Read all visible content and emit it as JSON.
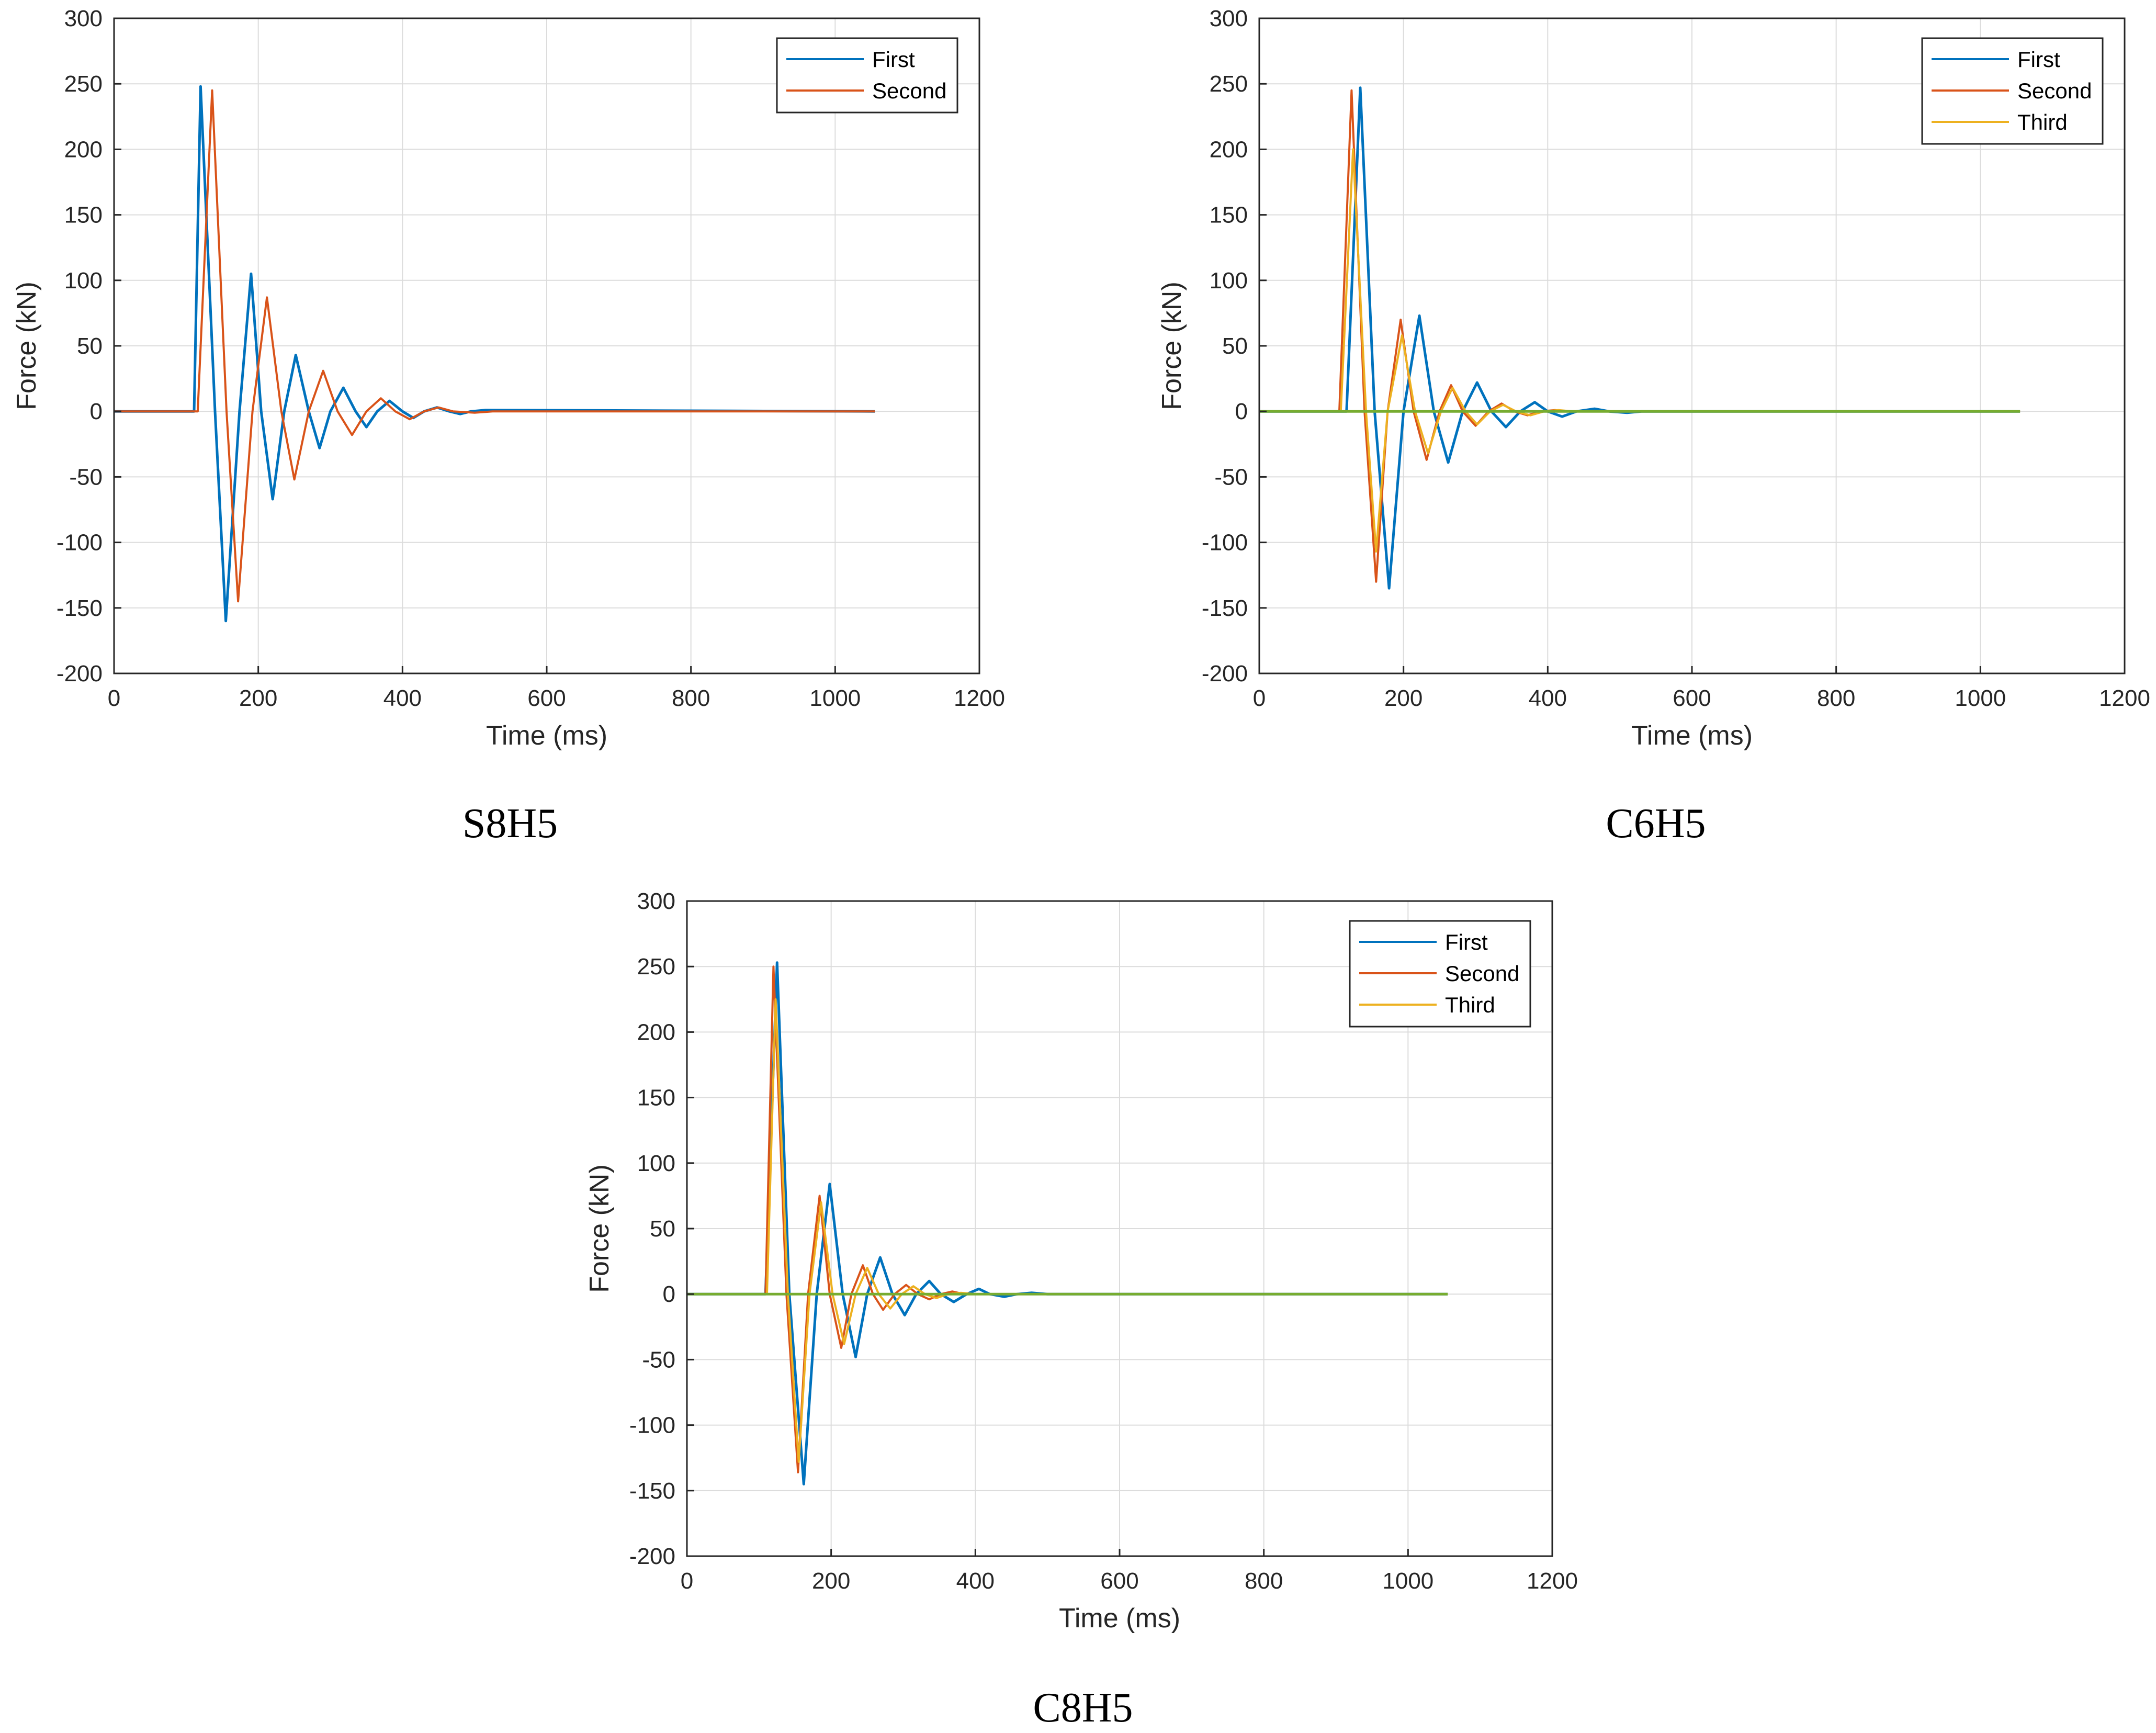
{
  "chart_data": [
    {
      "id": "s8h5",
      "type": "line",
      "caption": "S8H5",
      "xlabel": "Time (ms)",
      "ylabel": "Force (kN)",
      "xlim": [
        0,
        1200
      ],
      "ylim": [
        -200,
        300
      ],
      "xticks": [
        0,
        200,
        400,
        600,
        800,
        1000,
        1200
      ],
      "yticks": [
        -200,
        -150,
        -100,
        -50,
        0,
        50,
        100,
        150,
        200,
        250,
        300
      ],
      "grid": true,
      "legend_position": "top-right",
      "series": [
        {
          "name": "First",
          "color": "#0072BD",
          "points": [
            [
              0,
              0
            ],
            [
              110,
              0
            ],
            [
              111,
              0
            ],
            [
              120,
              248
            ],
            [
              140,
              0
            ],
            [
              155,
              -160
            ],
            [
              174,
              0
            ],
            [
              190,
              105
            ],
            [
              204,
              0
            ],
            [
              220,
              -67
            ],
            [
              236,
              0
            ],
            [
              252,
              43
            ],
            [
              270,
              0
            ],
            [
              285,
              -28
            ],
            [
              300,
              0
            ],
            [
              318,
              18
            ],
            [
              335,
              0
            ],
            [
              350,
              -12
            ],
            [
              365,
              0
            ],
            [
              382,
              8
            ],
            [
              400,
              0
            ],
            [
              415,
              -5
            ],
            [
              430,
              0
            ],
            [
              448,
              3
            ],
            [
              465,
              0
            ],
            [
              480,
              -2
            ],
            [
              495,
              0
            ],
            [
              515,
              1
            ],
            [
              1055,
              0
            ]
          ]
        },
        {
          "name": "Second",
          "color": "#D95319",
          "points": [
            [
              0,
              0
            ],
            [
              115,
              0
            ],
            [
              116,
              0
            ],
            [
              136,
              245
            ],
            [
              156,
              0
            ],
            [
              172,
              -145
            ],
            [
              192,
              0
            ],
            [
              212,
              87
            ],
            [
              232,
              0
            ],
            [
              250,
              -52
            ],
            [
              270,
              0
            ],
            [
              290,
              31
            ],
            [
              310,
              0
            ],
            [
              330,
              -18
            ],
            [
              350,
              0
            ],
            [
              370,
              10
            ],
            [
              390,
              0
            ],
            [
              410,
              -6
            ],
            [
              430,
              0
            ],
            [
              450,
              3
            ],
            [
              470,
              0
            ],
            [
              500,
              -1
            ],
            [
              525,
              0
            ],
            [
              1055,
              0
            ]
          ]
        }
      ]
    },
    {
      "id": "c6h5",
      "type": "line",
      "caption": "C6H5",
      "xlabel": "Time (ms)",
      "ylabel": "Force (kN)",
      "xlim": [
        0,
        1200
      ],
      "ylim": [
        -200,
        300
      ],
      "xticks": [
        0,
        200,
        400,
        600,
        800,
        1000,
        1200
      ],
      "yticks": [
        -200,
        -150,
        -100,
        -50,
        0,
        50,
        100,
        150,
        200,
        250,
        300
      ],
      "grid": true,
      "legend_position": "top-right",
      "series": [
        {
          "name": "First",
          "color": "#0072BD",
          "points": [
            [
              0,
              0
            ],
            [
              120,
              0
            ],
            [
              121,
              0
            ],
            [
              140,
              247
            ],
            [
              160,
              0
            ],
            [
              180,
              -135
            ],
            [
              200,
              0
            ],
            [
              222,
              73
            ],
            [
              242,
              0
            ],
            [
              262,
              -39
            ],
            [
              282,
              0
            ],
            [
              302,
              22
            ],
            [
              322,
              0
            ],
            [
              342,
              -12
            ],
            [
              362,
              0
            ],
            [
              382,
              7
            ],
            [
              400,
              0
            ],
            [
              420,
              -4
            ],
            [
              440,
              0
            ],
            [
              465,
              2
            ],
            [
              485,
              0
            ],
            [
              510,
              -1
            ],
            [
              530,
              0
            ],
            [
              1055,
              0
            ]
          ]
        },
        {
          "name": "Second",
          "color": "#D95319",
          "points": [
            [
              0,
              0
            ],
            [
              110,
              0
            ],
            [
              111,
              0
            ],
            [
              128,
              245
            ],
            [
              146,
              0
            ],
            [
              162,
              -130
            ],
            [
              178,
              0
            ],
            [
              196,
              70
            ],
            [
              214,
              0
            ],
            [
              232,
              -37
            ],
            [
              250,
              0
            ],
            [
              266,
              20
            ],
            [
              282,
              0
            ],
            [
              300,
              -11
            ],
            [
              318,
              0
            ],
            [
              336,
              6
            ],
            [
              354,
              0
            ],
            [
              372,
              -3
            ],
            [
              390,
              0
            ],
            [
              410,
              1
            ],
            [
              430,
              0
            ],
            [
              1055,
              0
            ]
          ]
        },
        {
          "name": "Third",
          "color": "#EDB120",
          "points": [
            [
              0,
              0
            ],
            [
              112,
              0
            ],
            [
              113,
              0
            ],
            [
              130,
              200
            ],
            [
              148,
              0
            ],
            [
              162,
              -107
            ],
            [
              178,
              0
            ],
            [
              198,
              58
            ],
            [
              216,
              0
            ],
            [
              234,
              -32
            ],
            [
              252,
              0
            ],
            [
              268,
              18
            ],
            [
              286,
              0
            ],
            [
              302,
              -10
            ],
            [
              320,
              0
            ],
            [
              338,
              5
            ],
            [
              356,
              0
            ],
            [
              376,
              -3
            ],
            [
              395,
              0
            ],
            [
              415,
              1
            ],
            [
              435,
              0
            ],
            [
              1055,
              0
            ]
          ]
        },
        {
          "name": "",
          "color": "#77AC30",
          "points": [
            [
              0,
              0
            ],
            [
              1055,
              0
            ]
          ]
        }
      ]
    },
    {
      "id": "c8h5",
      "type": "line",
      "caption": "C8H5",
      "xlabel": "Time (ms)",
      "ylabel": "Force (kN)",
      "xlim": [
        0,
        1200
      ],
      "ylim": [
        -200,
        300
      ],
      "xticks": [
        0,
        200,
        400,
        600,
        800,
        1000,
        1200
      ],
      "yticks": [
        -200,
        -150,
        -100,
        -50,
        0,
        50,
        100,
        150,
        200,
        250,
        300
      ],
      "grid": true,
      "legend_position": "top-right",
      "series": [
        {
          "name": "First",
          "color": "#0072BD",
          "points": [
            [
              0,
              0
            ],
            [
              108,
              0
            ],
            [
              109,
              0
            ],
            [
              125,
              253
            ],
            [
              142,
              0
            ],
            [
              162,
              -145
            ],
            [
              180,
              0
            ],
            [
              198,
              84
            ],
            [
              216,
              0
            ],
            [
              234,
              -48
            ],
            [
              250,
              0
            ],
            [
              268,
              28
            ],
            [
              285,
              0
            ],
            [
              302,
              -16
            ],
            [
              318,
              0
            ],
            [
              336,
              10
            ],
            [
              352,
              0
            ],
            [
              370,
              -6
            ],
            [
              388,
              0
            ],
            [
              405,
              4
            ],
            [
              420,
              0
            ],
            [
              440,
              -2
            ],
            [
              458,
              0
            ],
            [
              478,
              1
            ],
            [
              500,
              0
            ],
            [
              1055,
              0
            ]
          ]
        },
        {
          "name": "Second",
          "color": "#D95319",
          "points": [
            [
              0,
              0
            ],
            [
              108,
              0
            ],
            [
              109,
              0
            ],
            [
              120,
              250
            ],
            [
              138,
              0
            ],
            [
              154,
              -136
            ],
            [
              168,
              0
            ],
            [
              184,
              75
            ],
            [
              198,
              0
            ],
            [
              214,
              -41
            ],
            [
              228,
              0
            ],
            [
              244,
              22
            ],
            [
              258,
              0
            ],
            [
              272,
              -12
            ],
            [
              288,
              0
            ],
            [
              304,
              7
            ],
            [
              320,
              0
            ],
            [
              336,
              -4
            ],
            [
              352,
              0
            ],
            [
              368,
              2
            ],
            [
              384,
              0
            ],
            [
              1055,
              0
            ]
          ]
        },
        {
          "name": "Third",
          "color": "#EDB120",
          "points": [
            [
              0,
              0
            ],
            [
              110,
              0
            ],
            [
              111,
              0
            ],
            [
              123,
              225
            ],
            [
              140,
              0
            ],
            [
              155,
              -128
            ],
            [
              170,
              0
            ],
            [
              186,
              70
            ],
            [
              202,
              0
            ],
            [
              218,
              -38
            ],
            [
              234,
              0
            ],
            [
              250,
              20
            ],
            [
              266,
              0
            ],
            [
              282,
              -11
            ],
            [
              298,
              0
            ],
            [
              314,
              6
            ],
            [
              330,
              0
            ],
            [
              346,
              -3
            ],
            [
              362,
              0
            ],
            [
              380,
              1
            ],
            [
              400,
              0
            ],
            [
              1055,
              0
            ]
          ]
        },
        {
          "name": "",
          "color": "#77AC30",
          "points": [
            [
              0,
              0
            ],
            [
              1055,
              0
            ]
          ]
        }
      ]
    }
  ]
}
